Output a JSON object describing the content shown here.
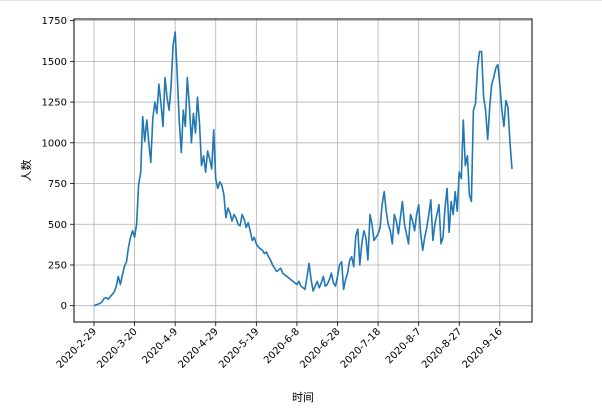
{
  "chart_data": {
    "type": "line",
    "title": "",
    "xlabel": "时间",
    "ylabel": "人数",
    "ylim": [
      -100,
      1760
    ],
    "grid": true,
    "xticks": [
      "2020-2-29",
      "2020-3-20",
      "2020-4-9",
      "2020-4-29",
      "2020-5-19",
      "2020-6-8",
      "2020-6-28",
      "2020-7-18",
      "2020-8-7",
      "2020-8-27",
      "2020-9-16"
    ],
    "yticks": [
      0,
      250,
      500,
      750,
      1000,
      1250,
      1500,
      1750
    ],
    "series_color": "#1f77b4",
    "series": [
      {
        "x_start": "2020-2-29",
        "values": [
          0,
          5,
          10,
          15,
          25,
          45,
          50,
          40,
          55,
          70,
          85,
          120,
          180,
          130,
          190,
          240,
          270,
          360,
          420,
          460,
          420,
          500,
          740,
          820,
          1160,
          1010,
          1140,
          1000,
          880,
          1150,
          1250,
          1180,
          1360,
          1240,
          1100,
          1400,
          1280,
          1200,
          1350,
          1600,
          1680,
          1420,
          1140,
          940,
          1200,
          1100,
          1400,
          1230,
          1000,
          1180,
          1060,
          1280,
          1120,
          860,
          920,
          820,
          950,
          900,
          840,
          1080,
          780,
          720,
          760,
          740,
          680,
          540,
          600,
          570,
          520,
          560,
          540,
          500,
          490,
          560,
          530,
          480,
          510,
          460,
          400,
          420,
          380,
          360,
          350,
          340,
          320,
          330,
          300,
          280,
          250,
          230,
          210,
          220,
          230,
          200,
          190,
          180,
          170,
          160,
          150,
          140,
          130,
          150,
          120,
          110,
          100,
          180,
          260,
          160,
          90,
          120,
          150,
          110,
          140,
          180,
          120,
          130,
          160,
          200,
          140,
          120,
          180,
          250,
          270,
          100,
          160,
          200,
          280,
          300,
          240,
          430,
          470,
          250,
          380,
          460,
          420,
          280,
          560,
          500,
          400,
          420,
          440,
          480,
          620,
          700,
          580,
          500,
          460,
          380,
          560,
          520,
          440,
          540,
          640,
          500,
          440,
          380,
          560,
          520,
          460,
          560,
          620,
          440,
          340,
          420,
          480,
          560,
          650,
          400,
          500,
          560,
          620,
          380,
          420,
          600,
          720,
          450,
          640,
          560,
          700,
          580,
          820,
          780,
          1140,
          860,
          920,
          680,
          640,
          1200,
          1240,
          1460,
          1560,
          1560,
          1280,
          1200,
          1020,
          1220,
          1360,
          1400,
          1460,
          1480,
          1360,
          1200,
          1100,
          1260,
          1220,
          1000,
          840
        ]
      }
    ]
  }
}
